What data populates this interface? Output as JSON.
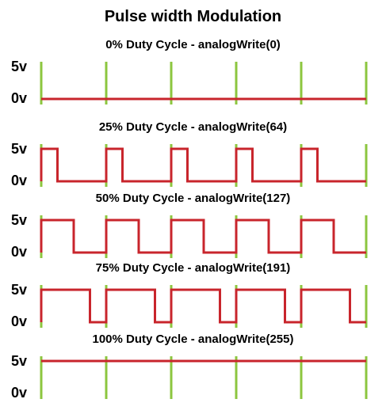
{
  "title": "Pulse width Modulation",
  "levels": {
    "high": "5v",
    "low": "0v"
  },
  "colors": {
    "signal": "#c8252c",
    "period_marker": "#8cc63f",
    "text": "#000000"
  },
  "chart_data": [
    {
      "type": "line",
      "title": "0% Duty Cycle - analogWrite(0)",
      "duty_percent": 0,
      "analog_write": 0,
      "periods": 5,
      "y_levels": [
        "0v",
        "5v"
      ]
    },
    {
      "type": "line",
      "title": "25% Duty Cycle - analogWrite(64)",
      "duty_percent": 25,
      "analog_write": 64,
      "periods": 5,
      "y_levels": [
        "0v",
        "5v"
      ]
    },
    {
      "type": "line",
      "title": "50% Duty Cycle - analogWrite(127)",
      "duty_percent": 50,
      "analog_write": 127,
      "periods": 5,
      "y_levels": [
        "0v",
        "5v"
      ]
    },
    {
      "type": "line",
      "title": "75% Duty Cycle - analogWrite(191)",
      "duty_percent": 75,
      "analog_write": 191,
      "periods": 5,
      "y_levels": [
        "0v",
        "5v"
      ]
    },
    {
      "type": "line",
      "title": "100% Duty Cycle - analogWrite(255)",
      "duty_percent": 100,
      "analog_write": 255,
      "periods": 5,
      "y_levels": [
        "0v",
        "5v"
      ]
    }
  ]
}
